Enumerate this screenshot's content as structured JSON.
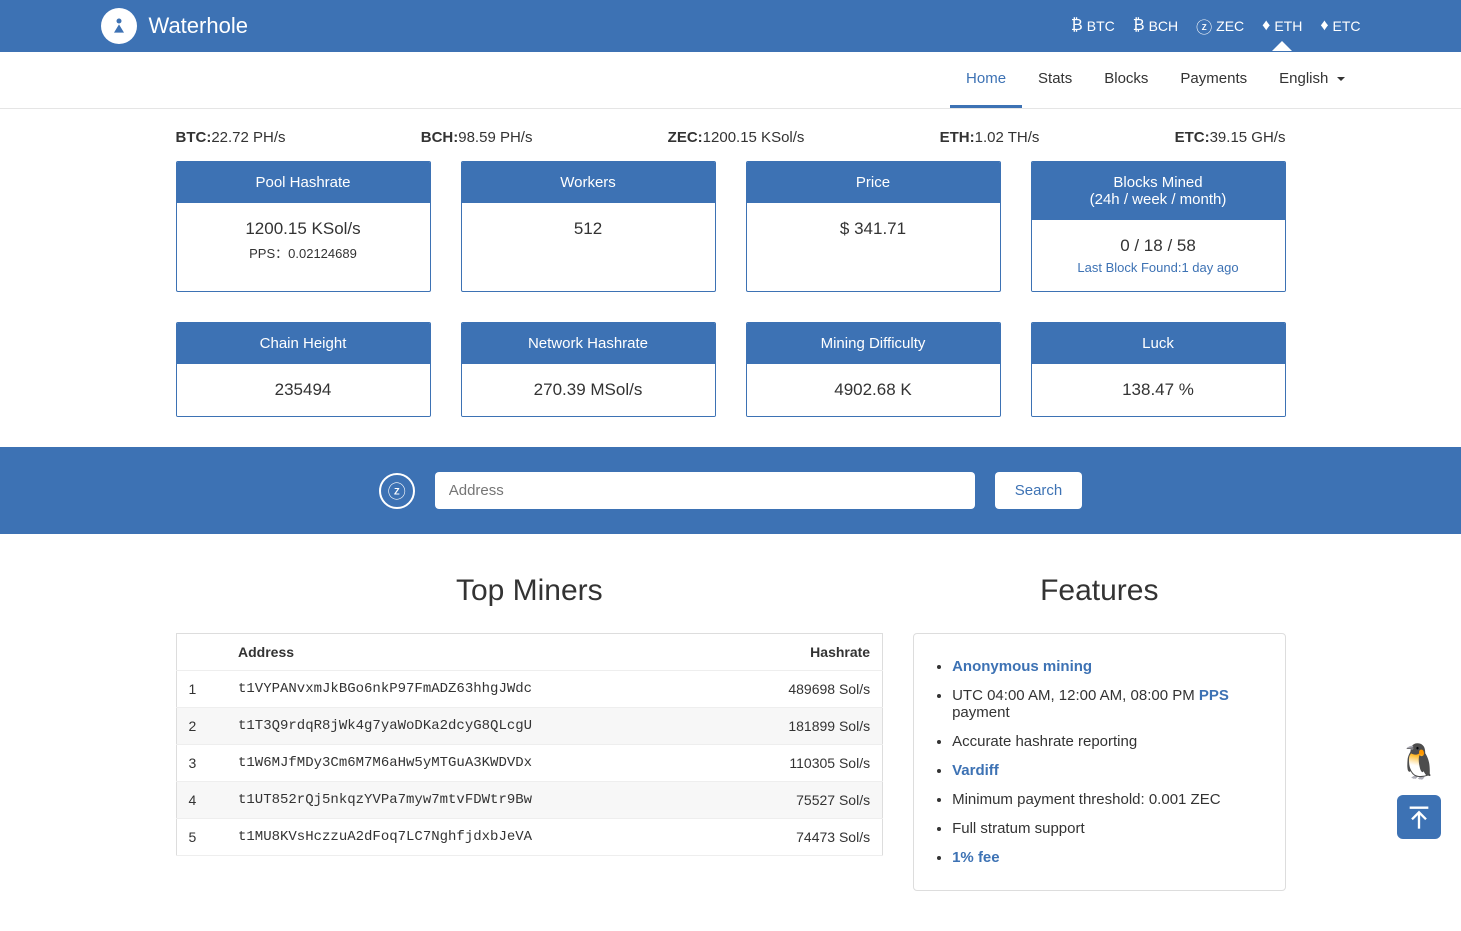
{
  "brand": {
    "name": "Waterhole"
  },
  "coins": [
    {
      "label": "BTC",
      "active": false
    },
    {
      "label": "BCH",
      "active": false
    },
    {
      "label": "ZEC",
      "active": false
    },
    {
      "label": "ETH",
      "active": true
    },
    {
      "label": "ETC",
      "active": false
    }
  ],
  "nav": {
    "home": "Home",
    "stats": "Stats",
    "blocks": "Blocks",
    "payments": "Payments",
    "lang": "English"
  },
  "hashrates": [
    {
      "label": "BTC:",
      "value": "22.72 PH/s"
    },
    {
      "label": "BCH:",
      "value": "98.59 PH/s"
    },
    {
      "label": "ZEC:",
      "value": "1200.15 KSol/s"
    },
    {
      "label": "ETH:",
      "value": "1.02 TH/s"
    },
    {
      "label": "ETC:",
      "value": "39.15 GH/s"
    }
  ],
  "cards": {
    "poolHashrate": {
      "title": "Pool Hashrate",
      "value": "1200.15 KSol/s",
      "sub": "PPS：0.02124689"
    },
    "workers": {
      "title": "Workers",
      "value": "512"
    },
    "price": {
      "title": "Price",
      "value": "$ 341.71"
    },
    "blocksMined": {
      "title": "Blocks Mined",
      "title2": "(24h / week / month)",
      "value": "0 / 18 / 58",
      "sub": "Last Block Found:1 day ago"
    },
    "chainHeight": {
      "title": "Chain Height",
      "value": "235494"
    },
    "networkHashrate": {
      "title": "Network Hashrate",
      "value": "270.39 MSol/s"
    },
    "difficulty": {
      "title": "Mining Difficulty",
      "value": "4902.68 K"
    },
    "luck": {
      "title": "Luck",
      "value": "138.47 %"
    }
  },
  "search": {
    "placeholder": "Address",
    "button": "Search"
  },
  "miners": {
    "title": "Top Miners",
    "headers": {
      "rank": "",
      "address": "Address",
      "hashrate": "Hashrate"
    },
    "rows": [
      {
        "rank": "1",
        "address": "t1VYPANvxmJkBGo6nkP97FmADZ63hhgJWdc",
        "hashrate": "489698 Sol/s"
      },
      {
        "rank": "2",
        "address": "t1T3Q9rdqR8jWk4g7yaWoDKa2dcyG8QLcgU",
        "hashrate": "181899 Sol/s"
      },
      {
        "rank": "3",
        "address": "t1W6MJfMDy3Cm6M7M6aHw5yMTGuA3KWDVDx",
        "hashrate": "110305 Sol/s"
      },
      {
        "rank": "4",
        "address": "t1UT852rQj5nkqzYVPa7myw7mtvFDWtr9Bw",
        "hashrate": "75527 Sol/s"
      },
      {
        "rank": "5",
        "address": "t1MU8KVsHczzuA2dFoq7LC7NghfjdxbJeVA",
        "hashrate": "74473 Sol/s"
      }
    ]
  },
  "features": {
    "title": "Features",
    "items": {
      "anon": "Anonymous mining",
      "utcPrefix": "UTC 04:00 AM, 12:00 AM, 08:00 PM ",
      "pps": "PPS",
      "utcSuffix": " payment",
      "accurate": "Accurate hashrate reporting",
      "vardiff": "Vardiff",
      "minpay": "Minimum payment threshold: 0.001 ZEC",
      "stratum": "Full stratum support",
      "fee": "1% fee"
    }
  },
  "colors": {
    "primary": "#3d72b4"
  }
}
